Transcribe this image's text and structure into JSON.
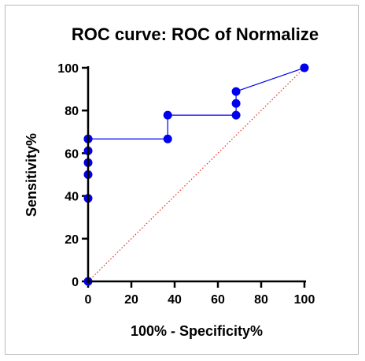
{
  "chart_data": {
    "type": "line",
    "title": "ROC curve: ROC of Normalize",
    "xlabel": "100% - Specificity%",
    "ylabel": "Sensitivity%",
    "xlim": [
      0,
      100
    ],
    "ylim": [
      0,
      100
    ],
    "xticks": [
      0,
      20,
      40,
      60,
      80,
      100
    ],
    "yticks": [
      0,
      20,
      40,
      60,
      80,
      100
    ],
    "grid": false,
    "series": [
      {
        "color": "#0000ee",
        "x": [
          0,
          0,
          0,
          0,
          0,
          0,
          0,
          36.8,
          36.8,
          68.4,
          68.4,
          68.4,
          100
        ],
        "y": [
          0,
          38.9,
          50,
          55.6,
          61.1,
          66.7,
          66.7,
          66.7,
          77.8,
          77.8,
          83.3,
          88.9,
          100
        ]
      },
      {
        "color": "#e03020",
        "style": "dotted",
        "x": [
          0,
          100
        ],
        "y": [
          0,
          100
        ]
      }
    ]
  }
}
